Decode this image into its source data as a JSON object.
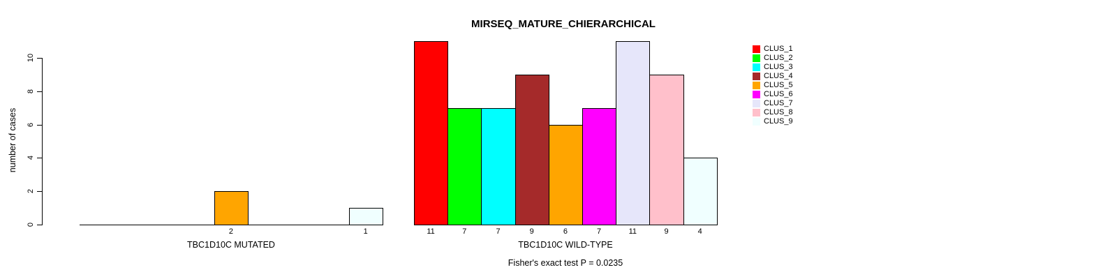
{
  "chart_data": {
    "type": "bar",
    "title": "MIRSEQ_MATURE_CHIERARCHICAL",
    "xlabel": "",
    "ylabel": "number of cases",
    "yticks": [
      0,
      2,
      4,
      6,
      8,
      10
    ],
    "ylim": [
      0,
      11
    ],
    "grid": false,
    "legend_position": "right",
    "categories": [
      "TBC1D10C MUTATED",
      "TBC1D10C WILD-TYPE"
    ],
    "series": [
      {
        "name": "CLUS_1",
        "color": "#FF0000",
        "values": [
          0,
          11
        ]
      },
      {
        "name": "CLUS_2",
        "color": "#00FF00",
        "values": [
          0,
          7
        ]
      },
      {
        "name": "CLUS_3",
        "color": "#00FFFF",
        "values": [
          0,
          7
        ]
      },
      {
        "name": "CLUS_4",
        "color": "#A52A2A",
        "values": [
          0,
          9
        ]
      },
      {
        "name": "CLUS_5",
        "color": "#FFA500",
        "values": [
          2,
          6
        ]
      },
      {
        "name": "CLUS_6",
        "color": "#FF00FF",
        "values": [
          0,
          7
        ]
      },
      {
        "name": "CLUS_7",
        "color": "#E6E6FA",
        "values": [
          0,
          11
        ]
      },
      {
        "name": "CLUS_8",
        "color": "#FFC0CB",
        "values": [
          0,
          9
        ]
      },
      {
        "name": "CLUS_9",
        "color": "#F0FFFF",
        "values": [
          1,
          4
        ]
      }
    ],
    "value_labels": [
      [
        "",
        "",
        "",
        "",
        "2",
        "",
        "",
        "",
        "1"
      ],
      [
        "11",
        "7",
        "7",
        "9",
        "6",
        "7",
        "11",
        "9",
        "4"
      ]
    ],
    "annotation": "Fisher's exact test P = 0.0235"
  }
}
